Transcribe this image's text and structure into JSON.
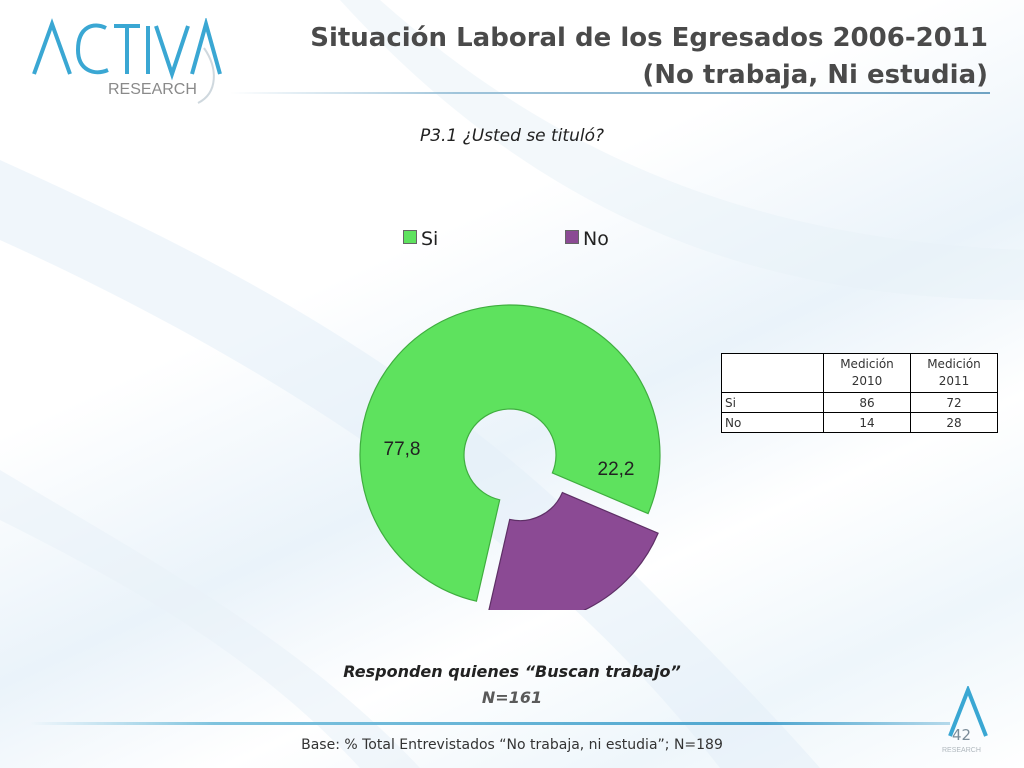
{
  "header": {
    "logo_main": "ACTIVA",
    "logo_sub": "RESEARCH",
    "title_line1": "Situación Laboral de los Egresados 2006-2011",
    "title_line2": "(No trabaja, Ni estudia)"
  },
  "chart_data": {
    "type": "pie",
    "variant": "donut-exploded",
    "title": "P3.1 ¿Usted se tituló?",
    "categories": [
      "Si",
      "No"
    ],
    "values": [
      77.8,
      22.2
    ],
    "value_labels": [
      "77,8",
      "22,2"
    ],
    "colors": [
      "#5ee25e",
      "#8b4a94"
    ],
    "legend_position": "top"
  },
  "table": {
    "headers": [
      "",
      "Medición 2010",
      "Medición 2011"
    ],
    "rows": [
      {
        "label": "Si",
        "v2010": "86",
        "v2011": "72"
      },
      {
        "label": "No",
        "v2010": "14",
        "v2011": "28"
      }
    ]
  },
  "footer": {
    "note_line1": "Responden quienes “Buscan trabajo”",
    "note_line2": "N=161",
    "base": "Base: % Total Entrevistados “No trabaja, ni estudia”; N=189",
    "page_number": "42",
    "small_logo_text": "RESEARCH"
  }
}
